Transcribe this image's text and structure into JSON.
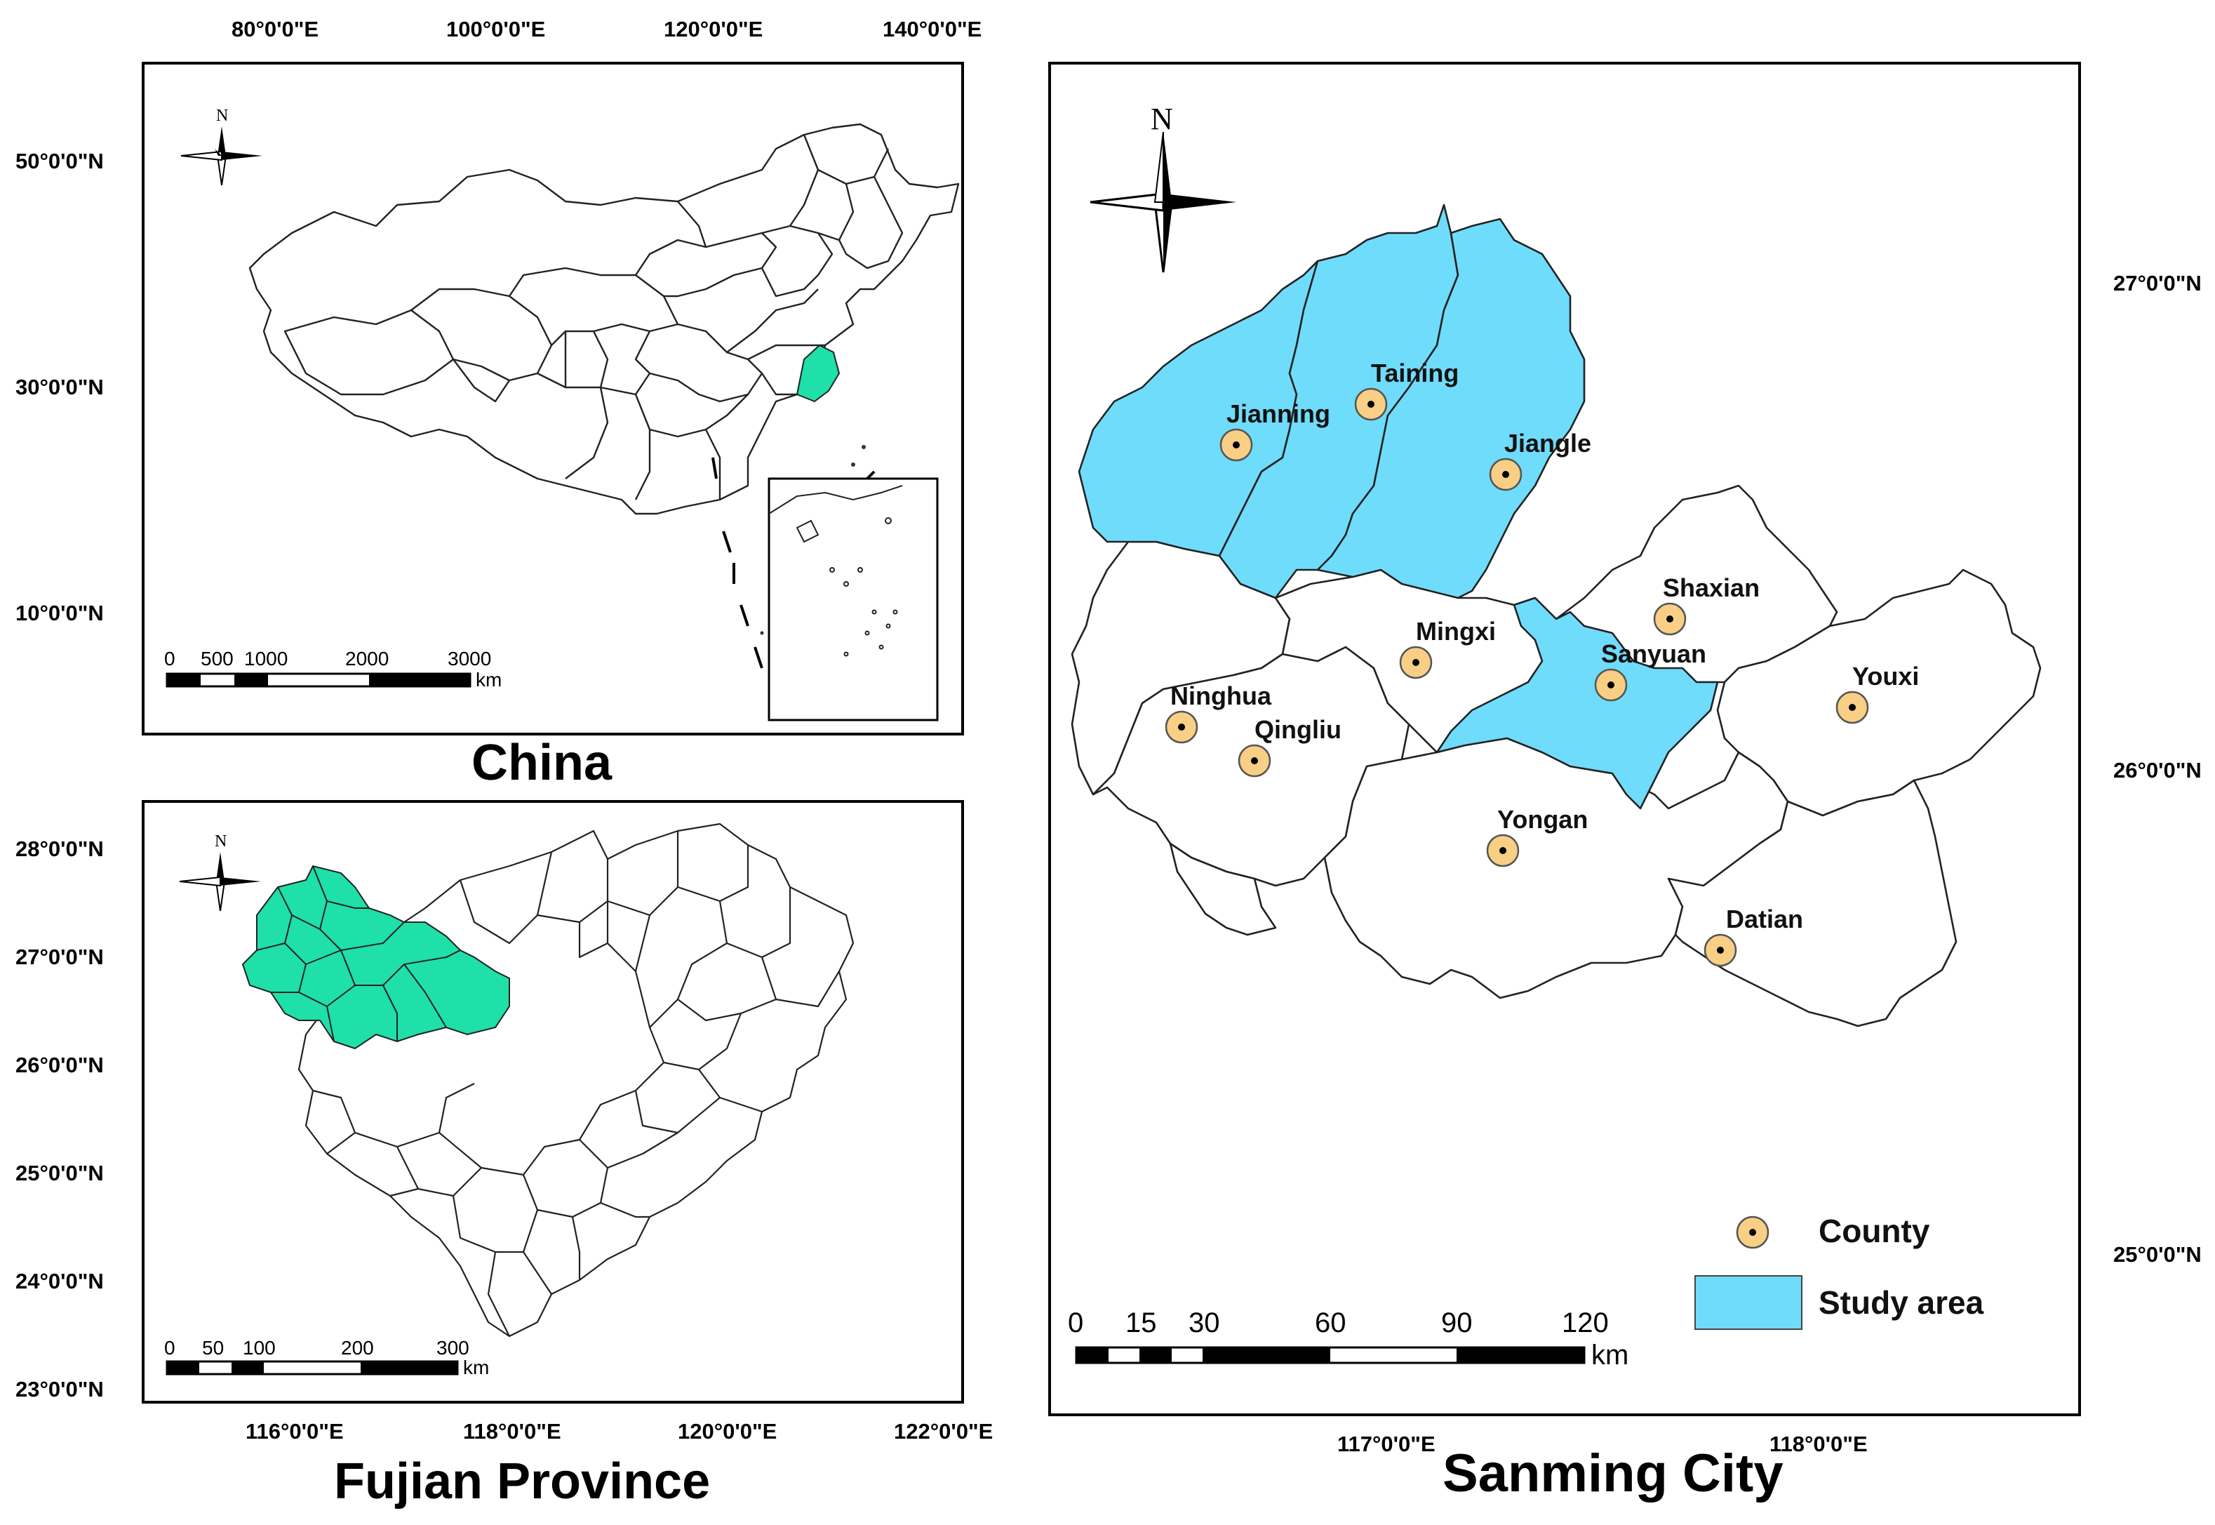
{
  "china": {
    "title": "China",
    "north": "N",
    "lon_ticks": [
      "80°0'0\"E",
      "100°0'0\"E",
      "120°0'0\"E",
      "140°0'0\"E"
    ],
    "lat_ticks": [
      "50°0'0\"N",
      "30°0'0\"N",
      "10°0'0\"N"
    ],
    "scale_labels": [
      "0",
      "500",
      "1000",
      "2000",
      "3000"
    ],
    "scale_unit": "km"
  },
  "fujian": {
    "title": "Fujian Province",
    "north": "N",
    "lon_ticks": [
      "116°0'0\"E",
      "118°0'0\"E",
      "120°0'0\"E",
      "122°0'0\"E"
    ],
    "lat_ticks": [
      "28°0'0\"N",
      "27°0'0\"N",
      "26°0'0\"N",
      "25°0'0\"N",
      "24°0'0\"N",
      "23°0'0\"N"
    ],
    "scale_labels": [
      "0",
      "50",
      "100",
      "200",
      "300"
    ],
    "scale_unit": "km"
  },
  "sanming": {
    "title": "Sanming City",
    "north": "N",
    "lon_ticks": [
      "117°0'0\"E",
      "118°0'0\"E"
    ],
    "lat_ticks": [
      "27°0'0\"N",
      "26°0'0\"N",
      "25°0'0\"N"
    ],
    "counties": [
      "Taining",
      "Jianning",
      "Jiangle",
      "Shaxian",
      "Mingxi",
      "Sanyuan",
      "Youxi",
      "Ninghua",
      "Qingliu",
      "Yongan",
      "Datian"
    ],
    "scale_labels": [
      "0",
      "15",
      "30",
      "60",
      "90",
      "120"
    ],
    "scale_unit": "km",
    "legend": {
      "county": "County",
      "study_area": "Study area"
    }
  },
  "colors": {
    "study_area": "#6fdcfb",
    "fujian_highlight": "#1ee0a8",
    "county_marker": "#f8cf84",
    "boundary": "#222222"
  }
}
